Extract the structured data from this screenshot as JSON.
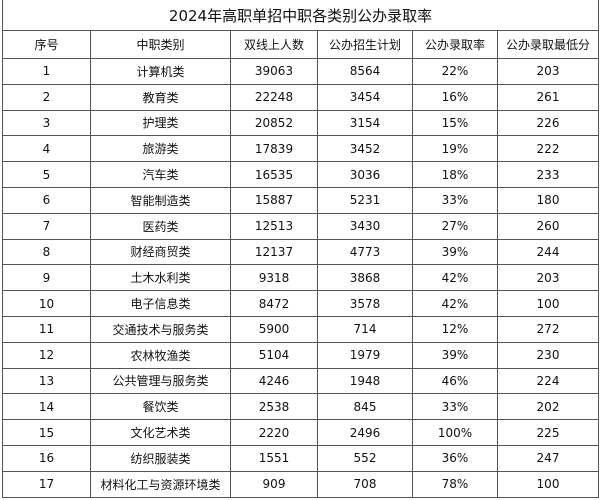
{
  "title": "2024年高职单招中职各类别公办录取率",
  "table": {
    "header": [
      "序号",
      "中职类别",
      "双线上人数",
      "公办招生计划",
      "公办录取率",
      "公办录取最低分"
    ],
    "rows": [
      [
        "1",
        "计算机类",
        "39063",
        "8564",
        "22%",
        "203"
      ],
      [
        "2",
        "教育类",
        "22248",
        "3454",
        "16%",
        "261"
      ],
      [
        "3",
        "护理类",
        "20852",
        "3154",
        "15%",
        "226"
      ],
      [
        "4",
        "旅游类",
        "17839",
        "3452",
        "19%",
        "222"
      ],
      [
        "5",
        "汽车类",
        "16535",
        "3036",
        "18%",
        "233"
      ],
      [
        "6",
        "智能制造类",
        "15887",
        "5231",
        "33%",
        "180"
      ],
      [
        "7",
        "医药类",
        "12513",
        "3430",
        "27%",
        "260"
      ],
      [
        "8",
        "财经商贸类",
        "12137",
        "4773",
        "39%",
        "244"
      ],
      [
        "9",
        "土木水利类",
        "9318",
        "3868",
        "42%",
        "203"
      ],
      [
        "10",
        "电子信息类",
        "8472",
        "3578",
        "42%",
        "100"
      ],
      [
        "11",
        "交通技术与服务类",
        "5900",
        "714",
        "12%",
        "272"
      ],
      [
        "12",
        "农林牧渔类",
        "5104",
        "1979",
        "39%",
        "230"
      ],
      [
        "13",
        "公共管理与服务类",
        "4246",
        "1948",
        "46%",
        "224"
      ],
      [
        "14",
        "餐饮类",
        "2538",
        "845",
        "33%",
        "202"
      ],
      [
        "15",
        "文化艺术类",
        "2220",
        "2496",
        "100%",
        "225"
      ],
      [
        "16",
        "纺织服装类",
        "1551",
        "552",
        "36%",
        "247"
      ],
      [
        "17",
        "材料化工与资源环境类",
        "909",
        "708",
        "78%",
        "100"
      ]
    ]
  }
}
